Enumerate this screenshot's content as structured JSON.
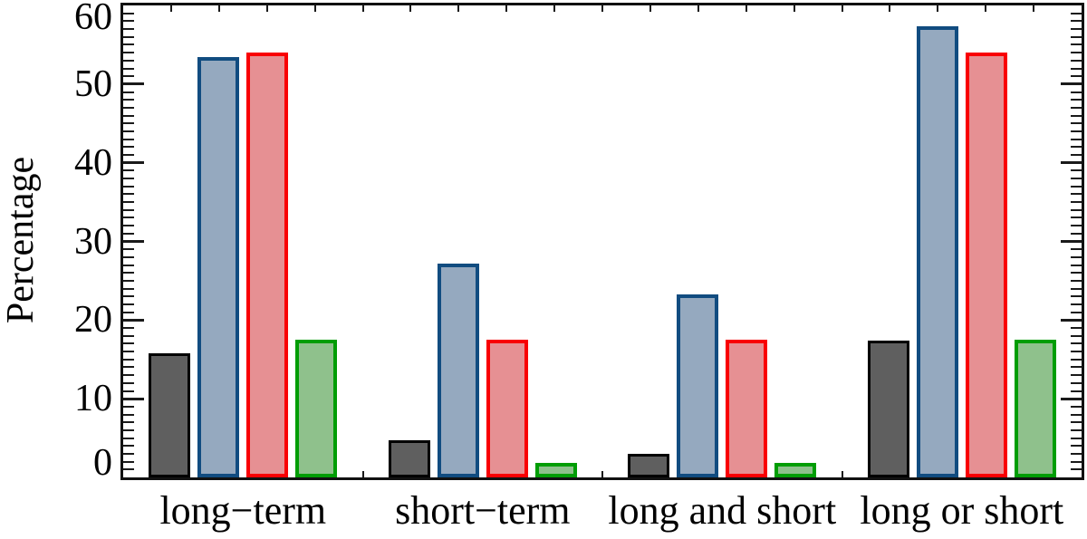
{
  "figure": {
    "background": "#ffffff",
    "axis_color": "#1a1a1a"
  },
  "chart_data": {
    "type": "bar",
    "title": "",
    "ylabel": "Percentage",
    "xlabel": "",
    "ylim": [
      0,
      60
    ],
    "y_major_tick_step": 10,
    "y_minor_tick_step": 1,
    "y_tick_labels": [
      "0",
      "10",
      "20",
      "30",
      "40",
      "50",
      "60"
    ],
    "grid": false,
    "legend": "none",
    "categories": [
      "long−term",
      "short−term",
      "long and short",
      "long or short"
    ],
    "series": [
      {
        "name": "dark-gray",
        "fill": "#5f5f5f",
        "border": "#000000",
        "values": [
          15.8,
          4.7,
          3.0,
          17.4
        ]
      },
      {
        "name": "steel-blue",
        "fill": "#95a9bf",
        "border": "#114c80",
        "values": [
          53.4,
          27.2,
          23.3,
          57.4
        ]
      },
      {
        "name": "red",
        "fill": "#e69093",
        "border": "#f90004",
        "values": [
          54.0,
          17.5,
          17.5,
          54.0
        ]
      },
      {
        "name": "green",
        "fill": "#8fc18c",
        "border": "#009d05",
        "values": [
          17.5,
          1.8,
          1.8,
          17.5
        ]
      }
    ]
  }
}
